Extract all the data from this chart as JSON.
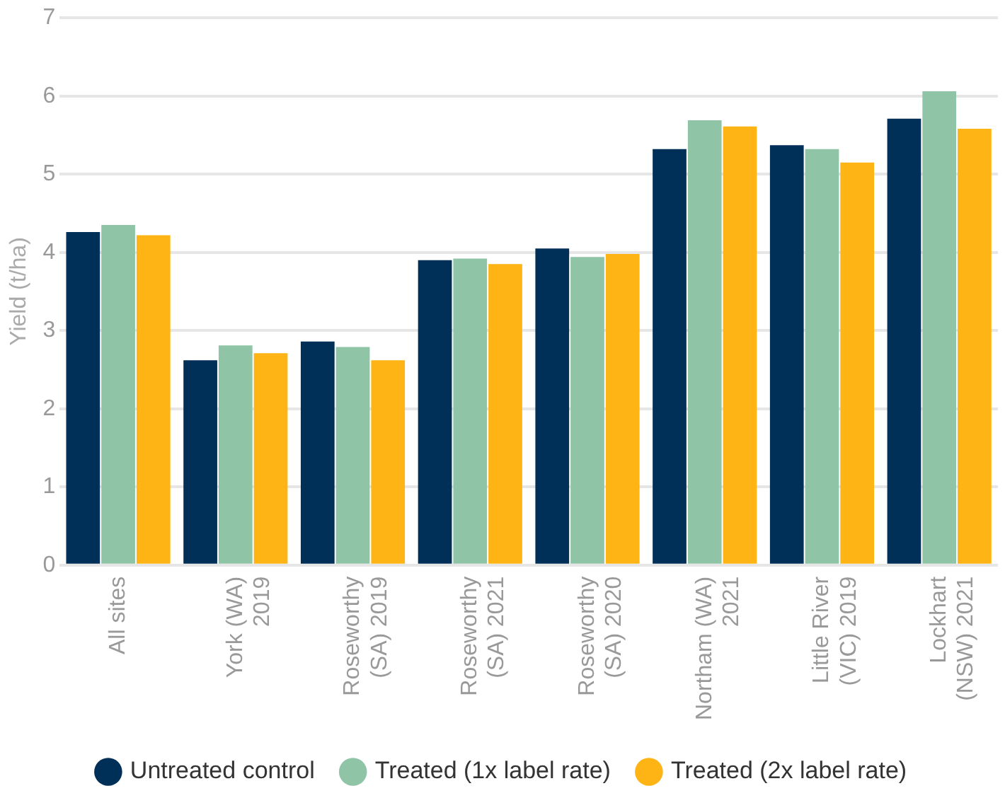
{
  "chart_data": {
    "type": "bar",
    "ylabel": "Yield (t/ha)",
    "categories": [
      "All sites",
      "York (WA)\n2019",
      "Roseworthy\n(SA) 2019",
      "Roseworthy\n(SA) 2021",
      "Roseworthy\n(SA) 2020",
      "Northam (WA)\n2021",
      "Little River\n(VIC) 2019",
      "Lockhart\n(NSW) 2021"
    ],
    "series": [
      {
        "name": "Untreated control",
        "color": "#003057",
        "values": [
          4.26,
          2.62,
          2.86,
          3.9,
          4.05,
          5.32,
          5.37,
          5.71
        ]
      },
      {
        "name": "Treated (1x label rate)",
        "color": "#8fc4a7",
        "values": [
          4.35,
          2.81,
          2.79,
          3.92,
          3.94,
          5.69,
          5.32,
          6.06
        ]
      },
      {
        "name": "Treated (2x label rate)",
        "color": "#feb414",
        "values": [
          4.22,
          2.71,
          2.62,
          3.85,
          3.98,
          5.61,
          5.15,
          5.58
        ]
      }
    ],
    "ylim": [
      0,
      7
    ],
    "yticks": [
      0,
      1,
      2,
      3,
      4,
      5,
      6,
      7
    ],
    "grid": "y",
    "legend": "bottom"
  }
}
